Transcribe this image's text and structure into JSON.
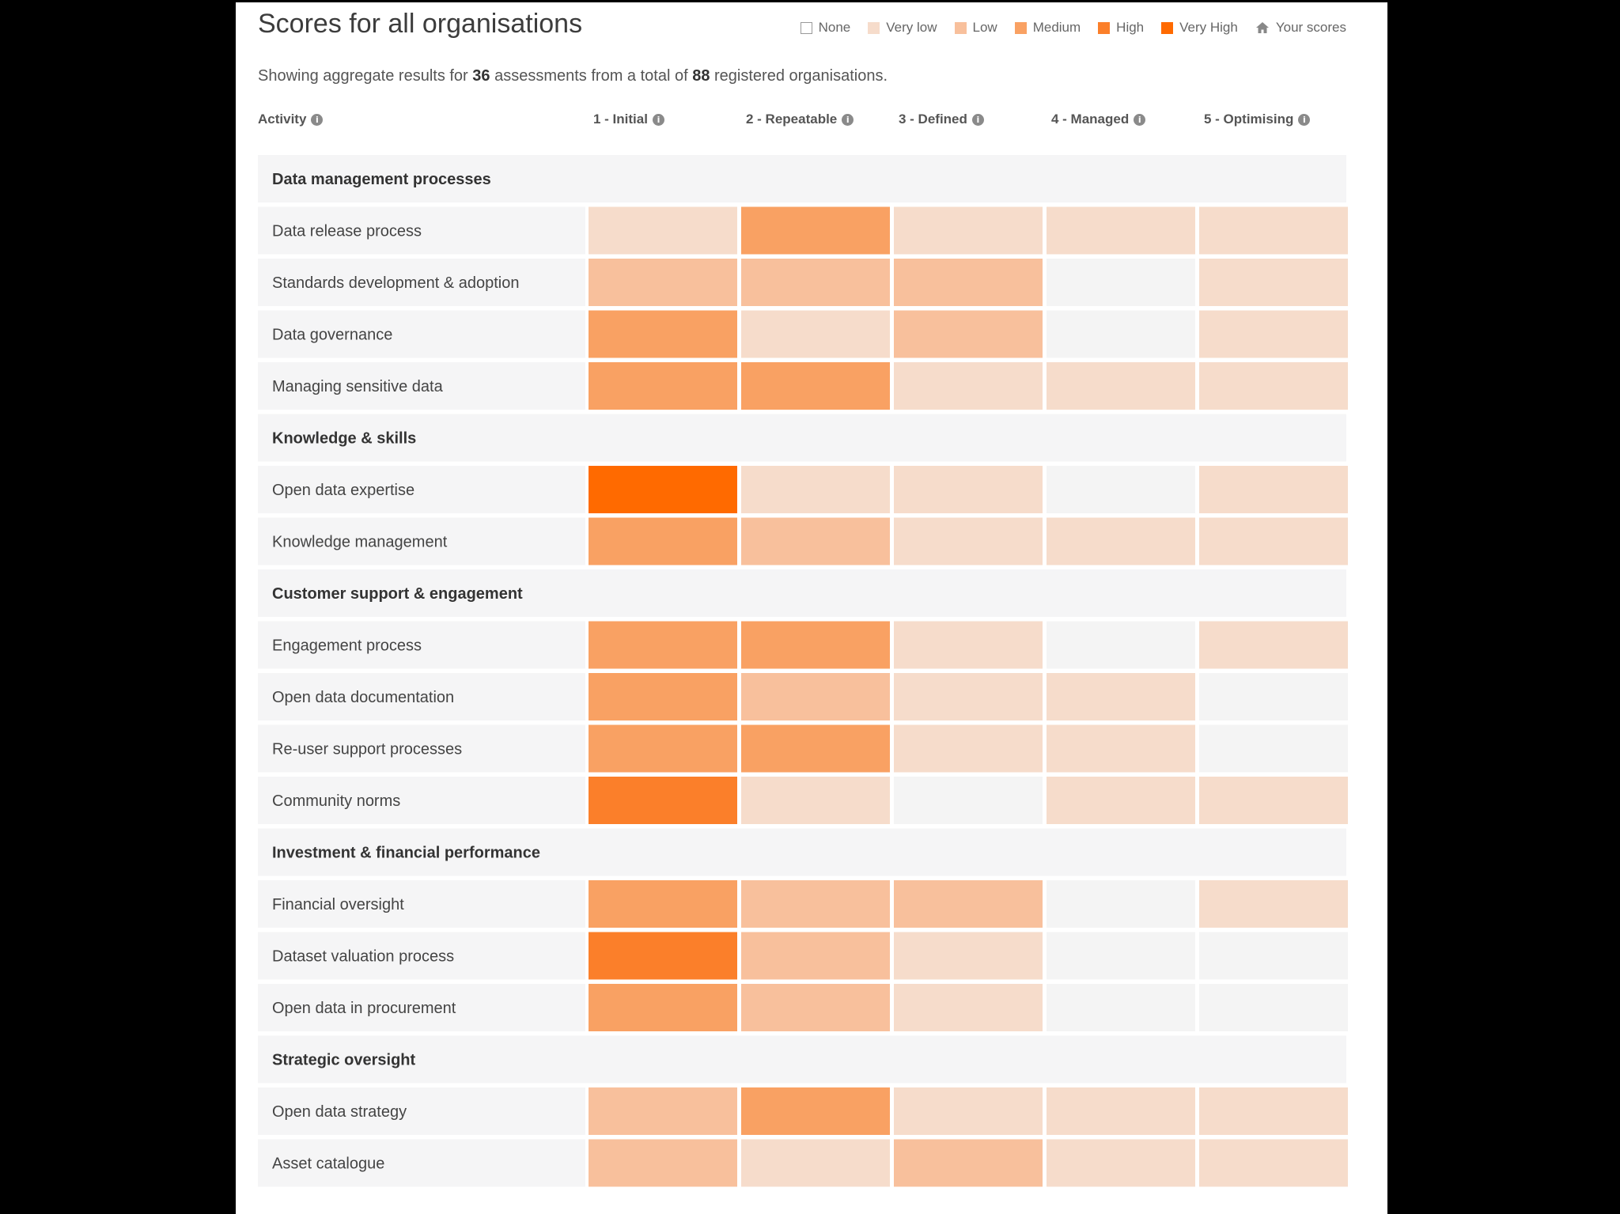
{
  "header": {
    "title": "Scores for all organisations",
    "summary_prefix": "Showing aggregate results for",
    "assessments": "36",
    "summary_middle": "assessments from a total of",
    "organisations": "88",
    "summary_suffix": "registered organisations."
  },
  "legend": [
    {
      "label": "None",
      "color": "#ffffff",
      "icon": "swatch-outline"
    },
    {
      "label": "Very low",
      "color": "#f6dccb"
    },
    {
      "label": "Low",
      "color": "#f8c09c"
    },
    {
      "label": "Medium",
      "color": "#f9a163"
    },
    {
      "label": "High",
      "color": "#fb7f2a"
    },
    {
      "label": "Very High",
      "color": "#ff6a00"
    },
    {
      "label": "Your scores",
      "icon": "house-icon",
      "color": "#888888"
    }
  ],
  "columns_header": {
    "activity": "Activity",
    "info_icon": "info-icon"
  },
  "chart_data": {
    "type": "heatmap",
    "title": "Scores for all organisations",
    "levels": [
      "None",
      "Very low",
      "Low",
      "Medium",
      "High",
      "Very High"
    ],
    "colors": [
      "#f4f4f4",
      "#f6dccb",
      "#f8c09c",
      "#f9a163",
      "#fb7f2a",
      "#ff6a00"
    ],
    "columns": [
      "1 - Initial",
      "2 - Repeatable",
      "3 - Defined",
      "4 - Managed",
      "5 - Optimising"
    ],
    "groups": [
      {
        "name": "Data management processes",
        "rows": [
          {
            "label": "Data release process",
            "values": [
              1,
              3,
              1,
              1,
              1
            ]
          },
          {
            "label": "Standards development & adoption",
            "values": [
              2,
              2,
              2,
              0,
              1
            ]
          },
          {
            "label": "Data governance",
            "values": [
              3,
              1,
              2,
              0,
              1
            ]
          },
          {
            "label": "Managing sensitive data",
            "values": [
              3,
              3,
              1,
              1,
              1
            ]
          }
        ]
      },
      {
        "name": "Knowledge & skills",
        "rows": [
          {
            "label": "Open data expertise",
            "values": [
              5,
              1,
              1,
              0,
              1
            ]
          },
          {
            "label": "Knowledge management",
            "values": [
              3,
              2,
              1,
              1,
              1
            ]
          }
        ]
      },
      {
        "name": "Customer support & engagement",
        "rows": [
          {
            "label": "Engagement process",
            "values": [
              3,
              3,
              1,
              0,
              1
            ]
          },
          {
            "label": "Open data documentation",
            "values": [
              3,
              2,
              1,
              1,
              0
            ]
          },
          {
            "label": "Re-user support processes",
            "values": [
              3,
              3,
              1,
              1,
              0
            ]
          },
          {
            "label": "Community norms",
            "values": [
              4,
              1,
              0,
              1,
              1
            ]
          }
        ]
      },
      {
        "name": "Investment & financial performance",
        "rows": [
          {
            "label": "Financial oversight",
            "values": [
              3,
              2,
              2,
              0,
              1
            ]
          },
          {
            "label": "Dataset valuation process",
            "values": [
              4,
              2,
              1,
              0,
              0
            ]
          },
          {
            "label": "Open data in procurement",
            "values": [
              3,
              2,
              1,
              0,
              0
            ]
          }
        ]
      },
      {
        "name": "Strategic oversight",
        "rows": [
          {
            "label": "Open data strategy",
            "values": [
              2,
              3,
              1,
              1,
              1
            ]
          },
          {
            "label": "Asset catalogue",
            "values": [
              2,
              1,
              2,
              1,
              1
            ]
          }
        ]
      }
    ]
  }
}
